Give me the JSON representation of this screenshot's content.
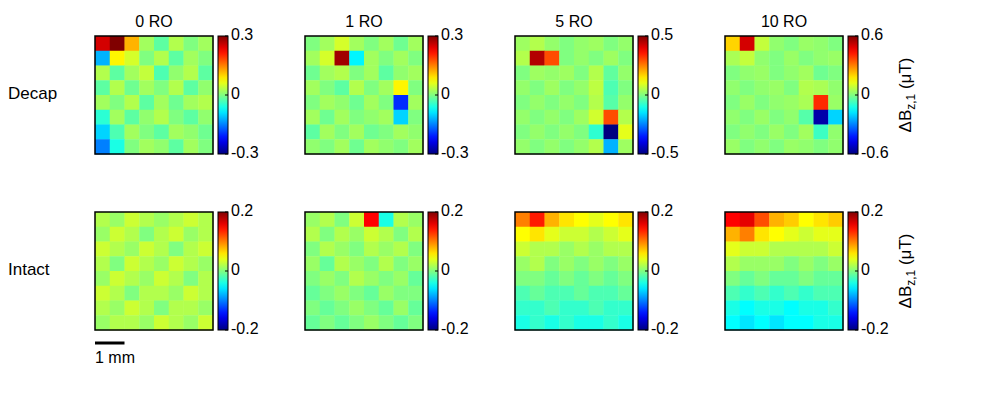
{
  "chart_data": {
    "type": "heatmap",
    "column_titles": [
      "0 RO",
      "1 RO",
      "5 RO",
      "10 RO"
    ],
    "colorbar_label": [
      "ΔB",
      "z,1",
      " (μT)"
    ],
    "scale_bar": {
      "label": "1 mm",
      "length": 1,
      "field_of_view": 4
    },
    "rows": [
      {
        "label": "Decap",
        "panels": [
          {
            "clim": [
              -0.3,
              0.3
            ],
            "cticks": [
              -0.3,
              0,
              0.3
            ],
            "cells": [
              [
                0.25,
                0.3,
                0.12,
                0.02,
                -0.02,
                0.03,
                0.0,
                0.02
              ],
              [
                -0.12,
                0.08,
                0.05,
                0.0,
                0.03,
                -0.02,
                0.02,
                0.0
              ],
              [
                0.03,
                -0.02,
                0.02,
                0.04,
                -0.03,
                0.01,
                0.03,
                -0.02
              ],
              [
                -0.02,
                0.03,
                -0.01,
                0.02,
                0.0,
                0.03,
                -0.02,
                0.01
              ],
              [
                0.02,
                0.0,
                0.03,
                -0.02,
                0.02,
                -0.01,
                0.02,
                0.03
              ],
              [
                -0.05,
                0.02,
                -0.02,
                0.01,
                0.03,
                0.0,
                -0.02,
                0.01
              ],
              [
                -0.1,
                -0.03,
                0.02,
                0.0,
                -0.02,
                0.02,
                0.01,
                -0.01
              ],
              [
                -0.15,
                -0.06,
                0.0,
                0.02,
                0.01,
                -0.02,
                0.02,
                0.0
              ]
            ]
          },
          {
            "clim": [
              -0.3,
              0.3
            ],
            "cticks": [
              -0.3,
              0,
              0.3
            ],
            "cells": [
              [
                0.0,
                0.02,
                0.05,
                0.02,
                0.0,
                0.02,
                -0.01,
                0.02
              ],
              [
                0.02,
                0.05,
                0.28,
                -0.08,
                0.02,
                0.0,
                0.02,
                0.0
              ],
              [
                -0.01,
                0.02,
                0.03,
                0.0,
                0.02,
                -0.02,
                0.01,
                0.02
              ],
              [
                0.02,
                0.0,
                -0.02,
                0.03,
                0.0,
                0.02,
                0.08,
                0.0
              ],
              [
                0.0,
                0.02,
                0.01,
                -0.01,
                0.02,
                0.0,
                -0.2,
                0.02
              ],
              [
                0.02,
                -0.01,
                0.02,
                0.0,
                0.01,
                0.02,
                -0.1,
                0.0
              ],
              [
                -0.02,
                0.02,
                0.0,
                0.02,
                -0.01,
                0.0,
                0.02,
                0.01
              ],
              [
                0.01,
                0.0,
                0.02,
                -0.01,
                0.02,
                0.01,
                0.0,
                0.02
              ]
            ]
          },
          {
            "clim": [
              -0.5,
              0.5
            ],
            "cticks": [
              -0.5,
              0,
              0.5
            ],
            "cells": [
              [
                0.03,
                0.05,
                0.02,
                0.0,
                0.02,
                0.03,
                0.0,
                0.02
              ],
              [
                0.05,
                0.45,
                0.3,
                0.0,
                0.02,
                0.0,
                0.03,
                0.0
              ],
              [
                0.0,
                0.03,
                0.02,
                0.03,
                0.0,
                0.05,
                -0.03,
                0.02
              ],
              [
                0.02,
                0.0,
                0.03,
                0.0,
                0.02,
                0.06,
                -0.05,
                0.0
              ],
              [
                0.0,
                0.02,
                0.0,
                0.02,
                0.0,
                0.05,
                -0.04,
                0.02
              ],
              [
                0.02,
                0.0,
                0.02,
                0.0,
                0.03,
                0.08,
                0.3,
                0.05
              ],
              [
                0.0,
                0.02,
                0.0,
                0.02,
                0.0,
                -0.08,
                -0.5,
                0.1
              ],
              [
                0.02,
                0.0,
                0.02,
                0.0,
                0.02,
                0.05,
                -0.2,
                0.03
              ]
            ]
          },
          {
            "clim": [
              -0.6,
              0.6
            ],
            "cticks": [
              -0.6,
              0,
              0.6
            ],
            "cells": [
              [
                0.2,
                0.5,
                0.08,
                0.02,
                0.0,
                0.03,
                0.02,
                0.0
              ],
              [
                0.05,
                0.08,
                0.02,
                0.0,
                0.03,
                0.0,
                0.02,
                0.03
              ],
              [
                0.0,
                0.02,
                0.03,
                0.0,
                0.02,
                0.04,
                -0.02,
                0.0
              ],
              [
                0.02,
                0.0,
                0.02,
                0.03,
                0.0,
                0.06,
                0.05,
                0.02
              ],
              [
                0.0,
                0.03,
                0.0,
                0.02,
                0.03,
                0.05,
                0.4,
                0.03
              ],
              [
                0.02,
                0.0,
                0.03,
                0.0,
                0.02,
                -0.05,
                -0.55,
                -0.2
              ],
              [
                0.0,
                0.02,
                0.0,
                0.03,
                0.0,
                0.04,
                -0.08,
                0.02
              ],
              [
                0.03,
                0.0,
                0.02,
                0.0,
                0.03,
                0.02,
                0.0,
                0.02
              ]
            ]
          }
        ]
      },
      {
        "label": "Intact",
        "panels": [
          {
            "clim": [
              -0.2,
              0.2
            ],
            "cticks": [
              -0.2,
              0,
              0.2
            ],
            "cells": [
              [
                0.02,
                0.01,
                0.03,
                0.02,
                0.01,
                0.02,
                0.03,
                0.02
              ],
              [
                0.01,
                0.03,
                0.02,
                0.0,
                0.02,
                0.03,
                0.01,
                0.02
              ],
              [
                0.03,
                0.02,
                0.01,
                0.03,
                0.02,
                0.0,
                0.02,
                0.03
              ],
              [
                0.02,
                0.0,
                0.03,
                0.02,
                0.01,
                0.03,
                0.02,
                0.01
              ],
              [
                0.01,
                0.03,
                0.02,
                0.01,
                0.03,
                0.02,
                0.0,
                0.02
              ],
              [
                0.03,
                0.02,
                0.0,
                0.02,
                0.02,
                0.01,
                0.03,
                0.02
              ],
              [
                0.02,
                0.01,
                0.03,
                0.02,
                0.0,
                0.02,
                0.02,
                0.01
              ],
              [
                0.01,
                0.02,
                0.02,
                0.01,
                0.03,
                0.02,
                0.01,
                0.03
              ]
            ]
          },
          {
            "clim": [
              -0.2,
              0.2
            ],
            "cticks": [
              -0.2,
              0,
              0.2
            ],
            "cells": [
              [
                0.01,
                0.02,
                0.0,
                0.03,
                0.15,
                -0.04,
                0.02,
                0.01
              ],
              [
                0.02,
                0.0,
                0.02,
                0.01,
                0.03,
                0.02,
                0.0,
                0.02
              ],
              [
                0.0,
                0.02,
                0.01,
                0.0,
                0.02,
                0.01,
                0.02,
                0.0
              ],
              [
                0.01,
                -0.01,
                0.02,
                0.01,
                0.0,
                0.02,
                0.0,
                0.01
              ],
              [
                0.0,
                0.01,
                0.0,
                0.02,
                0.01,
                0.0,
                0.01,
                -0.01
              ],
              [
                -0.01,
                0.0,
                0.01,
                0.0,
                -0.01,
                0.01,
                0.0,
                0.0
              ],
              [
                0.0,
                -0.01,
                0.0,
                0.01,
                0.0,
                -0.01,
                0.01,
                -0.01
              ],
              [
                -0.01,
                0.0,
                -0.01,
                0.0,
                0.01,
                0.0,
                -0.01,
                0.0
              ]
            ]
          },
          {
            "clim": [
              -0.2,
              0.2
            ],
            "cticks": [
              -0.2,
              0,
              0.2
            ],
            "cells": [
              [
                0.1,
                0.14,
                0.08,
                0.06,
                0.05,
                0.04,
                0.05,
                0.06
              ],
              [
                0.05,
                0.06,
                0.04,
                0.03,
                0.03,
                0.02,
                0.03,
                0.04
              ],
              [
                0.03,
                0.02,
                0.02,
                0.01,
                0.02,
                0.01,
                0.02,
                0.02
              ],
              [
                0.01,
                0.02,
                0.0,
                0.01,
                0.0,
                0.01,
                0.0,
                0.01
              ],
              [
                0.0,
                0.0,
                -0.01,
                0.0,
                -0.01,
                0.0,
                -0.01,
                0.0
              ],
              [
                -0.02,
                -0.01,
                -0.02,
                -0.02,
                -0.01,
                -0.02,
                -0.02,
                -0.01
              ],
              [
                -0.03,
                -0.03,
                -0.02,
                -0.03,
                -0.03,
                -0.02,
                -0.03,
                -0.03
              ],
              [
                -0.04,
                -0.03,
                -0.04,
                -0.03,
                -0.04,
                -0.04,
                -0.03,
                -0.04
              ]
            ]
          },
          {
            "clim": [
              -0.2,
              0.2
            ],
            "cticks": [
              -0.2,
              0,
              0.2
            ],
            "cells": [
              [
                0.15,
                0.16,
                0.12,
                0.08,
                0.07,
                0.05,
                0.06,
                0.07
              ],
              [
                0.08,
                0.1,
                0.06,
                0.05,
                0.04,
                0.03,
                0.04,
                0.04
              ],
              [
                0.04,
                0.03,
                0.03,
                0.02,
                0.02,
                0.02,
                0.02,
                0.03
              ],
              [
                0.02,
                0.01,
                0.01,
                0.01,
                0.0,
                0.01,
                0.0,
                0.01
              ],
              [
                0.0,
                -0.01,
                0.0,
                -0.01,
                -0.01,
                0.0,
                -0.01,
                -0.01
              ],
              [
                -0.02,
                -0.03,
                -0.02,
                -0.03,
                -0.02,
                -0.03,
                -0.02,
                -0.02
              ],
              [
                -0.04,
                -0.05,
                -0.04,
                -0.04,
                -0.05,
                -0.04,
                -0.04,
                -0.03
              ],
              [
                -0.05,
                -0.06,
                -0.05,
                -0.06,
                -0.05,
                -0.05,
                -0.04,
                -0.04
              ]
            ]
          }
        ]
      }
    ]
  }
}
